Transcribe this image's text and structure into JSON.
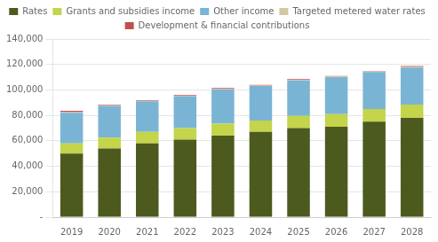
{
  "chart_data": {
    "type": "bar",
    "stacked": true,
    "categories": [
      "2019",
      "2020",
      "2021",
      "2022",
      "2023",
      "2024",
      "2025",
      "2026",
      "2027",
      "2028"
    ],
    "series": [
      {
        "name": "Rates",
        "color": "#4d5a1e",
        "values": [
          50000,
          54000,
          58000,
          61000,
          64000,
          67000,
          70000,
          71000,
          75000,
          78000
        ]
      },
      {
        "name": "Grants and subsidies income",
        "color": "#c4d44b",
        "values": [
          8000,
          8500,
          9000,
          9000,
          9500,
          9000,
          9500,
          10000,
          10000,
          10500
        ]
      },
      {
        "name": "Other income",
        "color": "#7ab4d4",
        "values": [
          24000,
          25000,
          24000,
          25000,
          27000,
          27000,
          28000,
          29000,
          29000,
          29000
        ]
      },
      {
        "name": "Targeted metered water rates",
        "color": "#d4c8a0",
        "values": [
          500,
          500,
          500,
          500,
          500,
          500,
          500,
          500,
          500,
          500
        ]
      },
      {
        "name": "Development & financial contributions",
        "color": "#c0504d",
        "values": [
          1000,
          500,
          500,
          500,
          500,
          500,
          500,
          500,
          500,
          700
        ]
      }
    ],
    "ylim": [
      0,
      140000
    ],
    "yticks": [
      {
        "value": 0,
        "label": "-"
      },
      {
        "value": 20000,
        "label": "20,000"
      },
      {
        "value": 40000,
        "label": "40,000"
      },
      {
        "value": 60000,
        "label": "60,000"
      },
      {
        "value": 80000,
        "label": "80,000"
      },
      {
        "value": 100000,
        "label": "100,000"
      },
      {
        "value": 120000,
        "label": "120,000"
      },
      {
        "value": 140000,
        "label": "140,000"
      }
    ],
    "grid": true,
    "legend": "top"
  }
}
